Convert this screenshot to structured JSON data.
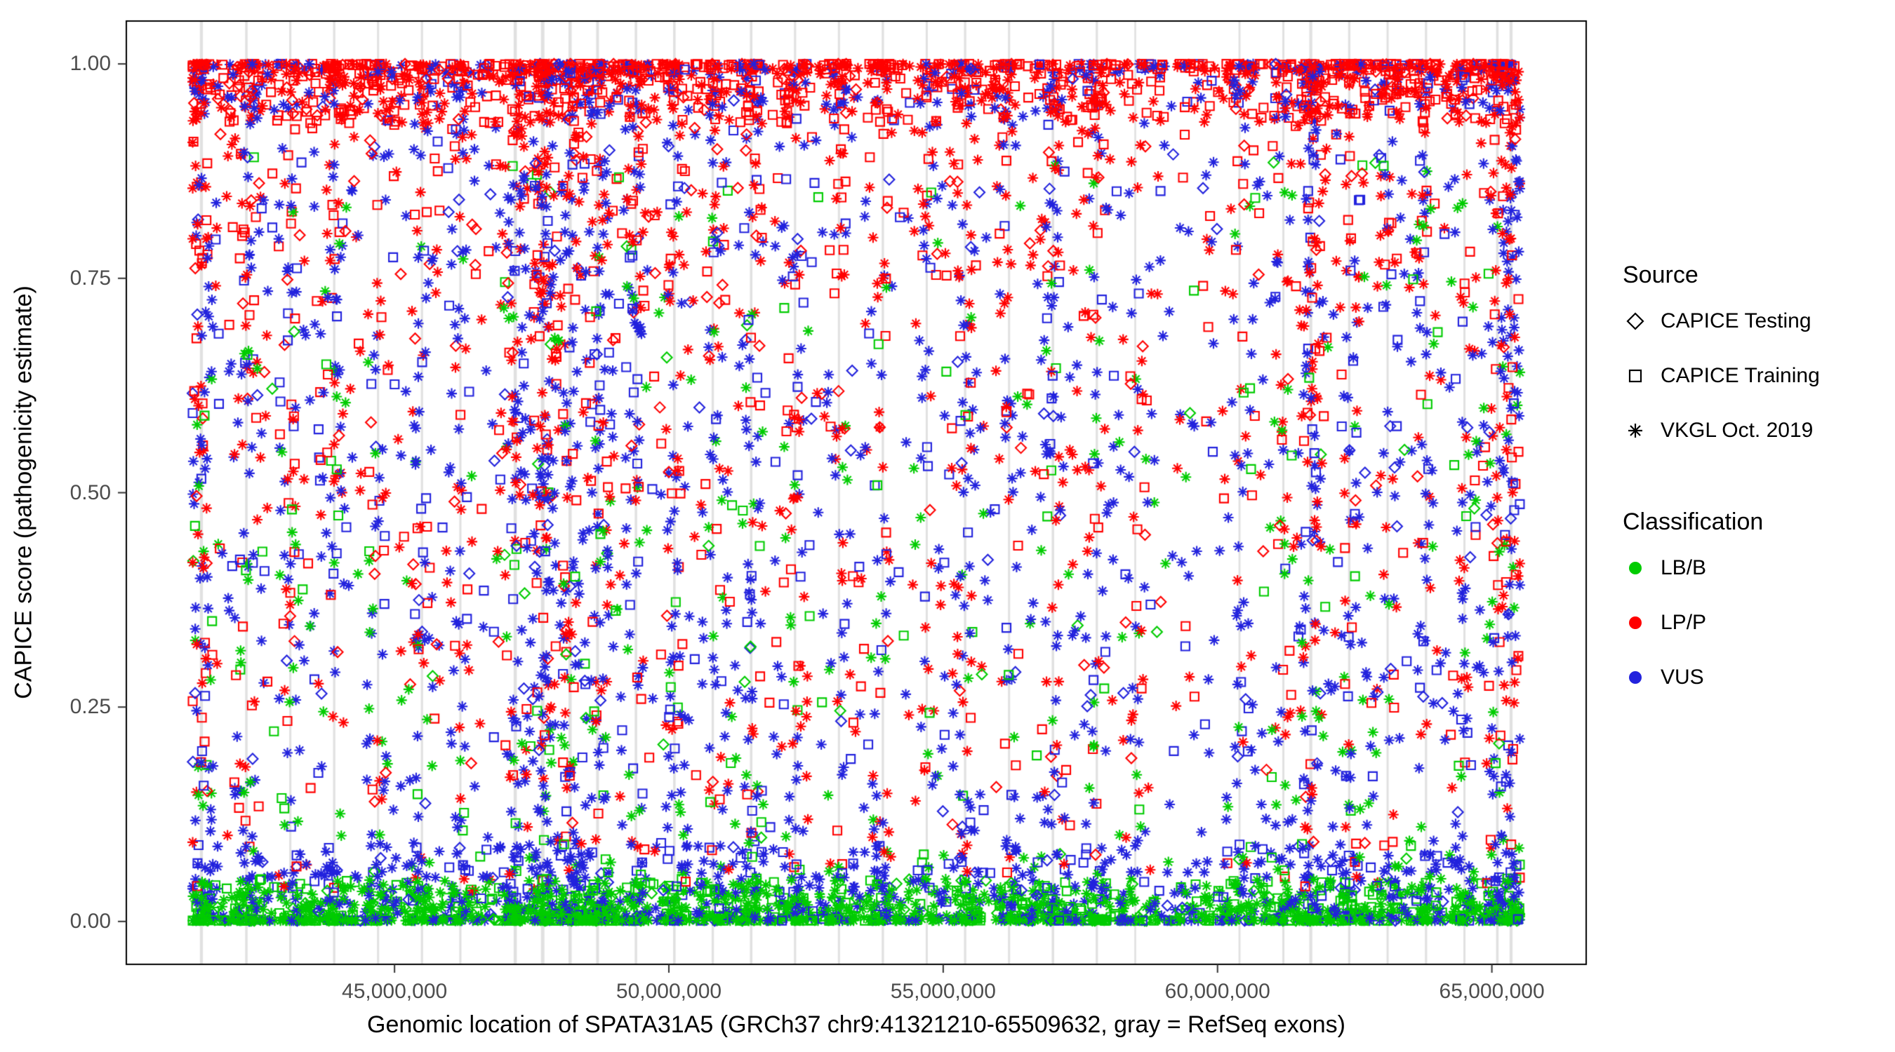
{
  "chart_data": {
    "type": "scatter",
    "title": "",
    "xlabel": "Genomic location of SPATA31A5 (GRCh37 chr9:41321210-65509632, gray = RefSeq exons)",
    "ylabel": "CAPICE score (pathogenicity estimate)",
    "x_range": [
      41321210,
      65509632
    ],
    "y_range": [
      0,
      1
    ],
    "x_ticks": [
      {
        "value": 45000000,
        "label": "45,000,000"
      },
      {
        "value": 50000000,
        "label": "50,000,000"
      },
      {
        "value": 55000000,
        "label": "55,000,000"
      },
      {
        "value": 60000000,
        "label": "60,000,000"
      },
      {
        "value": 65000000,
        "label": "65,000,000"
      }
    ],
    "y_ticks": [
      {
        "value": 0.0,
        "label": "0.00"
      },
      {
        "value": 0.25,
        "label": "0.25"
      },
      {
        "value": 0.5,
        "label": "0.50"
      },
      {
        "value": 0.75,
        "label": "0.75"
      },
      {
        "value": 1.0,
        "label": "1.00"
      }
    ],
    "legend": {
      "source": {
        "title": "Source",
        "items": [
          {
            "label": "CAPICE Testing",
            "shape": "diamond"
          },
          {
            "label": "CAPICE Training",
            "shape": "square"
          },
          {
            "label": "VKGL Oct. 2019",
            "shape": "asterisk"
          }
        ]
      },
      "classification": {
        "title": "Classification",
        "items": [
          {
            "label": "LB/B",
            "color": "#00CC00"
          },
          {
            "label": "LP/P",
            "color": "#FF0000"
          },
          {
            "label": "VUS",
            "color": "#2222DD"
          }
        ]
      }
    },
    "panel_border_color": "#000000",
    "tick_color": "#333333",
    "exon_color": "#DEDEDE",
    "generator": {
      "seed": 1337,
      "cluster_sigma": 130000,
      "clusters": [
        [
          41480000,
          2.2
        ],
        [
          42300000,
          1.5
        ],
        [
          43100000,
          1.0
        ],
        [
          43900000,
          1.2
        ],
        [
          44700000,
          1.0
        ],
        [
          45500000,
          1.2
        ],
        [
          46200000,
          1.0
        ],
        [
          47200000,
          2.5
        ],
        [
          47700000,
          3.0
        ],
        [
          48200000,
          2.5
        ],
        [
          48700000,
          2.0
        ],
        [
          49400000,
          1.5
        ],
        [
          50100000,
          1.6
        ],
        [
          50800000,
          1.2
        ],
        [
          51500000,
          1.5
        ],
        [
          52300000,
          1.2
        ],
        [
          53100000,
          1.0
        ],
        [
          53900000,
          1.2
        ],
        [
          54700000,
          1.0
        ],
        [
          55400000,
          1.2
        ],
        [
          56200000,
          1.0
        ],
        [
          57000000,
          1.5
        ],
        [
          57800000,
          1.2
        ],
        [
          58500000,
          0.7
        ],
        [
          60400000,
          0.8
        ],
        [
          61200000,
          1.0
        ],
        [
          61700000,
          2.2
        ],
        [
          62400000,
          1.2
        ],
        [
          63100000,
          1.0
        ],
        [
          63800000,
          1.2
        ],
        [
          64500000,
          1.0
        ],
        [
          65100000,
          1.6
        ],
        [
          65350000,
          2.2
        ]
      ],
      "classes": [
        {
          "name": "LB/B",
          "color": "#00CC00",
          "count": 2000,
          "shapes": {
            "asterisk": 0.66,
            "square": 0.27,
            "diamond": 0.07
          },
          "mix": [
            {
              "w": 0.72,
              "type": "pow_low",
              "a": 0.05,
              "p": 2.6,
              "cp": 0.3
            },
            {
              "w": 0.28,
              "type": "uniform",
              "lo": 0.01,
              "hi": 0.9,
              "p": 1.7,
              "cp": 0.6
            }
          ]
        },
        {
          "name": "LP/P",
          "color": "#FF0000",
          "count": 2700,
          "shapes": {
            "asterisk": 0.58,
            "square": 0.32,
            "diamond": 0.1
          },
          "shapes_top": {
            "asterisk": 0.4,
            "square": 0.52,
            "diamond": 0.08
          },
          "top_threshold": 0.93,
          "mix": [
            {
              "w": 0.5,
              "type": "pow_high",
              "a": 0.07,
              "p": 2.3,
              "cp": 0.4
            },
            {
              "w": 0.09,
              "type": "uniform",
              "lo": 0.72,
              "hi": 0.95,
              "p": 1.0,
              "cp": 0.6
            },
            {
              "w": 0.41,
              "type": "uniform",
              "lo": 0.03,
              "hi": 0.95,
              "p": 0.85,
              "cp": 0.7
            }
          ]
        },
        {
          "name": "VUS",
          "color": "#2222DD",
          "count": 2800,
          "shapes": {
            "asterisk": 0.76,
            "square": 0.17,
            "diamond": 0.07
          },
          "mix": [
            {
              "w": 0.28,
              "type": "pow_low",
              "a": 0.09,
              "p": 2.1,
              "cp": 0.3
            },
            {
              "w": 0.12,
              "type": "pow_high",
              "a": 0.055,
              "p": 2.1,
              "cp": 0.5
            },
            {
              "w": 0.6,
              "type": "uniform",
              "lo": 0.02,
              "hi": 0.97,
              "p": 1.05,
              "cp": 0.65
            }
          ]
        }
      ]
    }
  }
}
